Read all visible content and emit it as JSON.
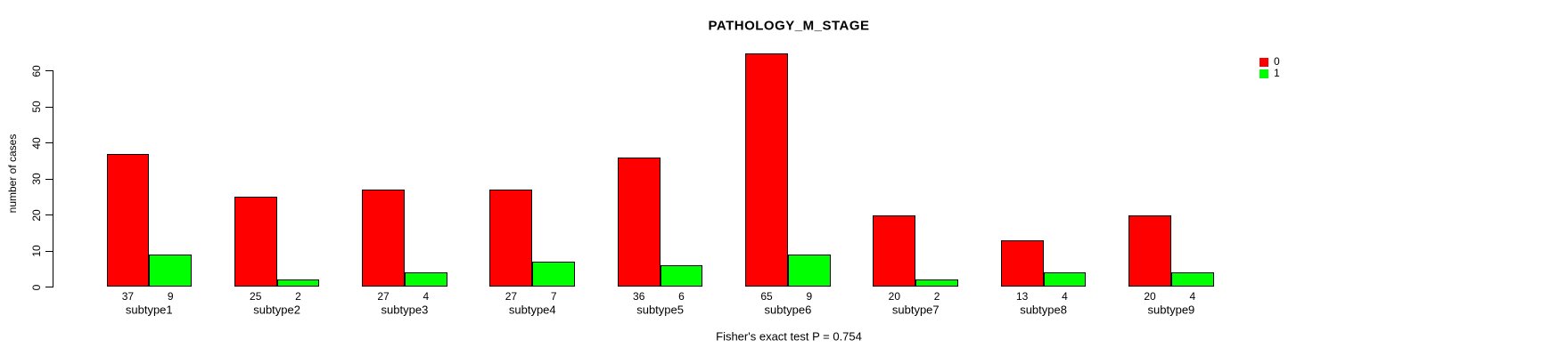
{
  "chart_data": {
    "type": "bar",
    "title": "PATHOLOGY_M_STAGE",
    "ylabel": "number of cases",
    "xlabel": "",
    "categories": [
      "subtype1",
      "subtype2",
      "subtype3",
      "subtype4",
      "subtype5",
      "subtype6",
      "subtype7",
      "subtype8",
      "subtype9"
    ],
    "series": [
      {
        "name": "0",
        "color": "#FF0000",
        "values": [
          37,
          25,
          27,
          27,
          36,
          65,
          20,
          13,
          20
        ]
      },
      {
        "name": "1",
        "color": "#00FF00",
        "values": [
          9,
          2,
          4,
          7,
          6,
          9,
          2,
          4,
          4
        ]
      }
    ],
    "yticks": [
      0,
      10,
      20,
      30,
      40,
      50,
      60
    ],
    "ylim": [
      0,
      65
    ],
    "grid": false,
    "legend_position": "top-right",
    "bar_value_labels_shown": true,
    "annotation": "Fisher's exact test P = 0.754"
  }
}
